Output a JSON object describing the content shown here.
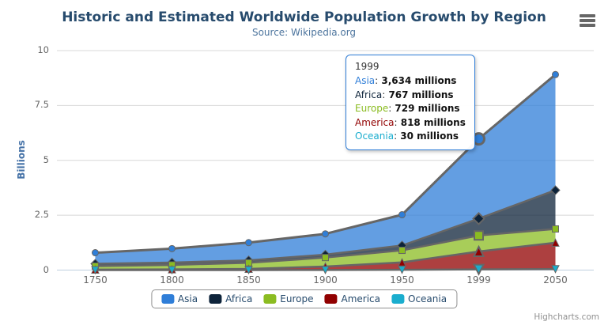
{
  "title": "Historic and Estimated Worldwide Population Growth by Region",
  "subtitle": "Source: Wikipedia.org",
  "credits": "Highcharts.com",
  "y_axis": {
    "title": "Billions",
    "ticks": [
      0,
      2.5,
      5,
      7.5,
      10
    ],
    "max": 10
  },
  "x_axis": {
    "categories": [
      "1750",
      "1800",
      "1850",
      "1900",
      "1950",
      "1999",
      "2050"
    ]
  },
  "tooltip": {
    "header": "1999",
    "border_color": "#2f7ed8",
    "rows": [
      {
        "series": "Asia",
        "value_label": "3,634 millions"
      },
      {
        "series": "Africa",
        "value_label": "767 millions"
      },
      {
        "series": "Europe",
        "value_label": "729 millions"
      },
      {
        "series": "America",
        "value_label": "818 millions"
      },
      {
        "series": "Oceania",
        "value_label": "30 millions"
      }
    ]
  },
  "colors": {
    "title": "#274b6d",
    "subtitle": "#4d759e",
    "axis_label": "#666666",
    "y_axis_title": "#4572a7",
    "legend_text": "#274b6d",
    "legend_border": "#909090",
    "grid": "#d8d8d8",
    "axis_line": "#c0d0e0",
    "series_line": "#666666",
    "marker_stroke": "#666666",
    "credits": "#909090"
  },
  "chart_data": {
    "type": "area",
    "stacking": "normal",
    "stack_order": "first-series-on-top",
    "title": "Historic and Estimated Worldwide Population Growth by Region",
    "subtitle": "Source: Wikipedia.org",
    "xlabel": "",
    "ylabel": "Billions",
    "ylim": [
      0,
      10
    ],
    "values_unit": "millions",
    "grid": "horizontal",
    "legend_position": "bottom",
    "hover_category": "1999",
    "categories": [
      "1750",
      "1800",
      "1850",
      "1900",
      "1950",
      "1999",
      "2050"
    ],
    "series": [
      {
        "name": "Asia",
        "color": "#2f7ed8",
        "marker": "circle",
        "values": [
          502,
          635,
          809,
          947,
          1402,
          3634,
          5268
        ]
      },
      {
        "name": "Africa",
        "color": "#0d233a",
        "marker": "diamond",
        "values": [
          106,
          107,
          111,
          133,
          221,
          767,
          1766
        ]
      },
      {
        "name": "Europe",
        "color": "#8bbc21",
        "marker": "square",
        "values": [
          163,
          203,
          276,
          408,
          547,
          729,
          628
        ]
      },
      {
        "name": "America",
        "color": "#910000",
        "marker": "triangle",
        "values": [
          18,
          31,
          54,
          156,
          339,
          818,
          1201
        ]
      },
      {
        "name": "Oceania",
        "color": "#1aadce",
        "marker": "triangle-down",
        "values": [
          2,
          2,
          2,
          6,
          13,
          30,
          46
        ]
      }
    ]
  }
}
